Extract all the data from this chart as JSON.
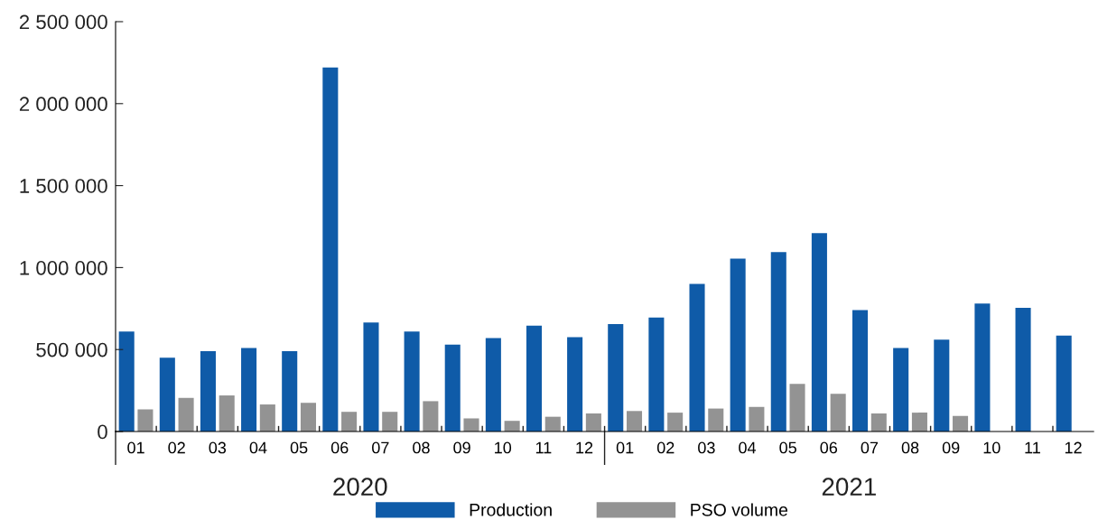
{
  "chart_data": {
    "type": "bar",
    "categories": [
      "01",
      "02",
      "03",
      "04",
      "05",
      "06",
      "07",
      "08",
      "09",
      "10",
      "11",
      "12",
      "01",
      "02",
      "03",
      "04",
      "05",
      "06",
      "07",
      "08",
      "09",
      "10",
      "11",
      "12"
    ],
    "series": [
      {
        "name": "Production",
        "color": "#0f5ba8",
        "values": [
          610000,
          450000,
          490000,
          510000,
          490000,
          2220000,
          665000,
          610000,
          530000,
          570000,
          645000,
          575000,
          655000,
          695000,
          900000,
          1055000,
          1095000,
          1210000,
          740000,
          510000,
          560000,
          780000,
          755000,
          585000
        ]
      },
      {
        "name": "PSO volume",
        "color": "#939393",
        "values": [
          135000,
          205000,
          220000,
          165000,
          175000,
          120000,
          120000,
          185000,
          80000,
          65000,
          90000,
          110000,
          125000,
          115000,
          140000,
          150000,
          290000,
          230000,
          110000,
          115000,
          95000,
          0,
          0,
          null
        ]
      }
    ],
    "annotations": [
      "2020",
      "2021"
    ],
    "ylim": [
      0,
      2500000
    ],
    "yticks": [
      {
        "value": 0,
        "label": "0"
      },
      {
        "value": 500000,
        "label": "500 000"
      },
      {
        "value": 1000000,
        "label": "1 000 000"
      },
      {
        "value": 1500000,
        "label": "1 500 000"
      },
      {
        "value": 2000000,
        "label": "2 000 000"
      },
      {
        "value": 2500000,
        "label": "2 500 000"
      }
    ],
    "grid": false,
    "legend": "bottom"
  }
}
